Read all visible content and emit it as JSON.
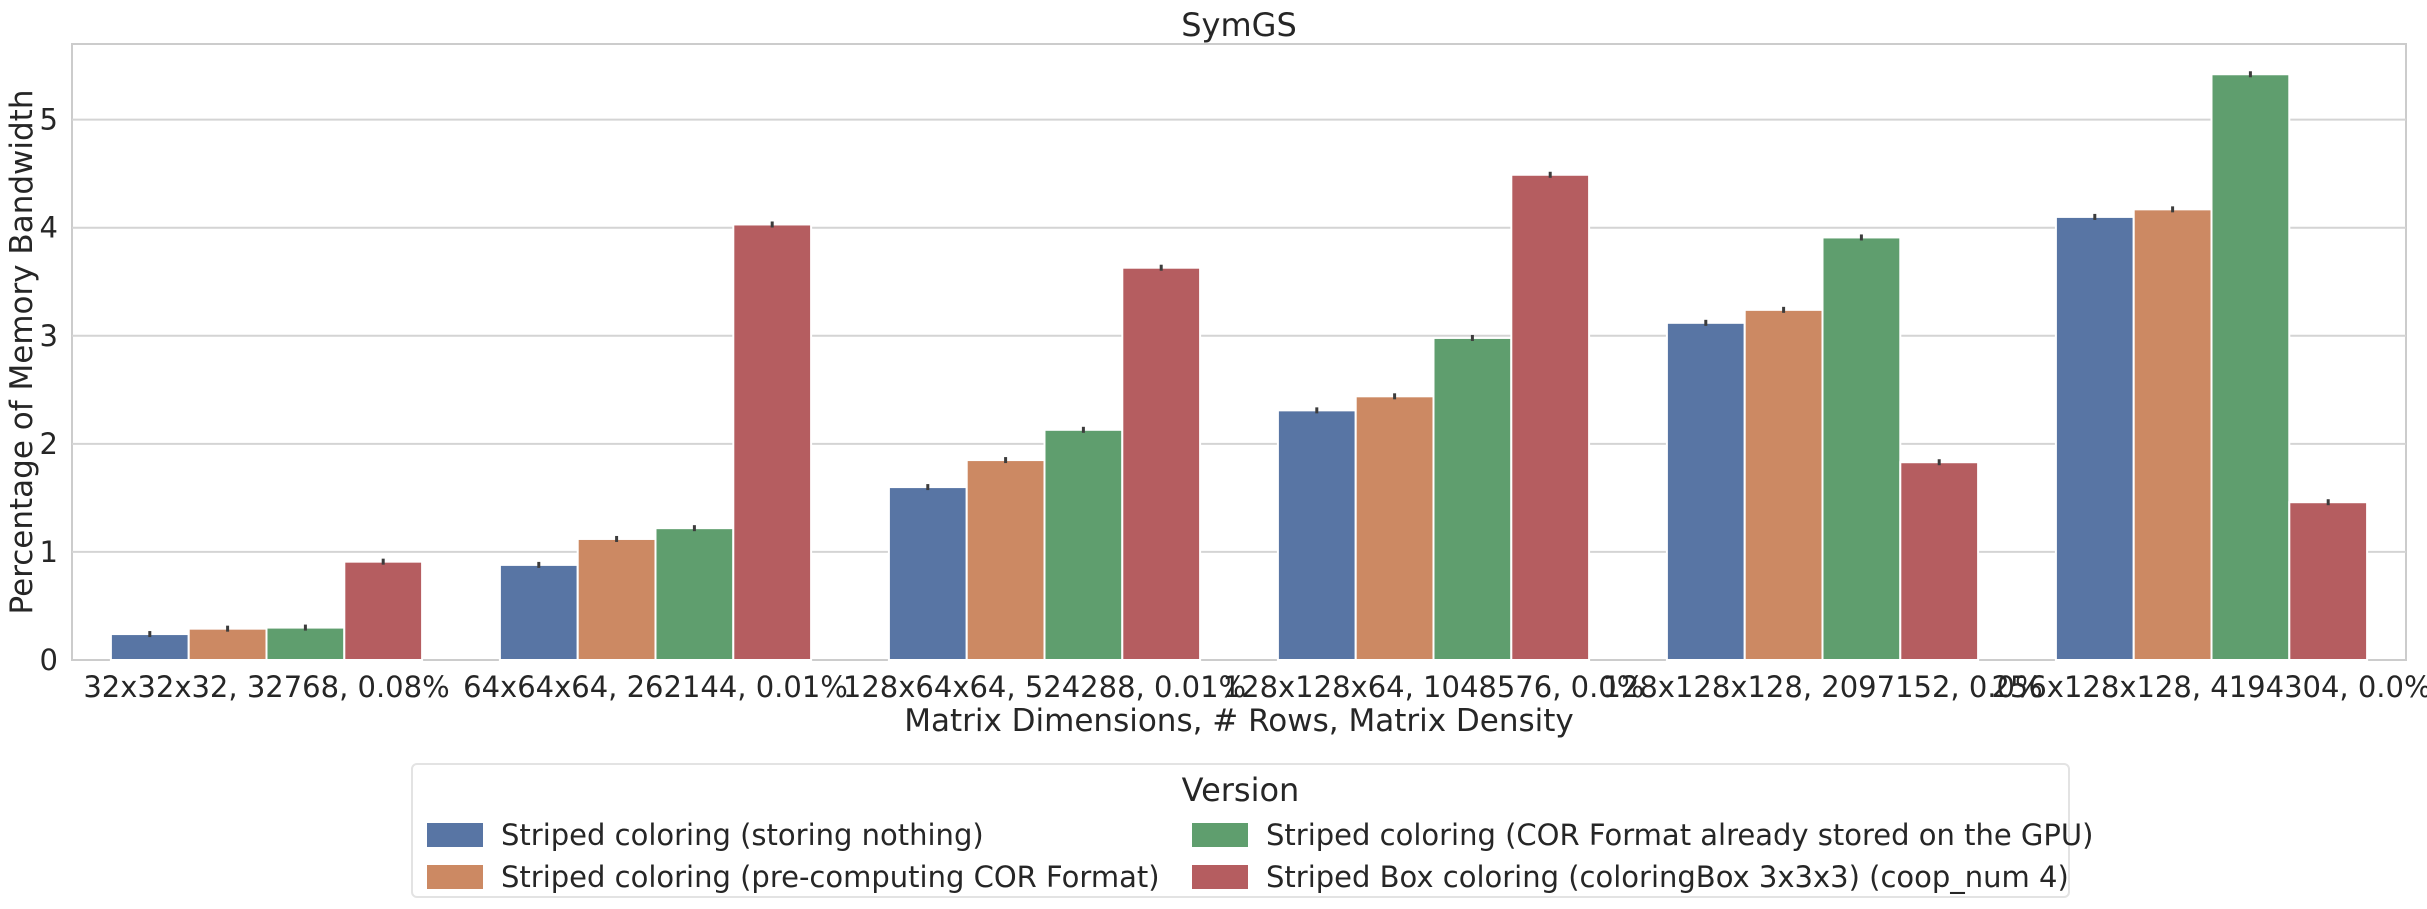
{
  "chart_data": {
    "type": "bar",
    "title": "SymGS",
    "xlabel": "Matrix Dimensions, # Rows, Matrix Density",
    "ylabel": "Percentage of Memory Bandwidth",
    "ylim": [
      0,
      5.7
    ],
    "yticks": [
      0,
      1,
      2,
      3,
      4,
      5
    ],
    "grid": true,
    "categories": [
      "32x32x32, 32768, 0.08%",
      "64x64x64, 262144, 0.01%",
      "128x64x64, 524288, 0.01%",
      "128x128x64, 1048576, 0.0%",
      "128x128x128, 2097152, 0.0%",
      "256x128x128, 4194304, 0.0%"
    ],
    "series": [
      {
        "name": "Striped coloring (storing nothing)",
        "color": "#5875a4",
        "values": [
          0.24,
          0.88,
          1.6,
          2.31,
          3.12,
          4.1
        ]
      },
      {
        "name": "Striped coloring (pre-computing COR Format)",
        "color": "#cc8963",
        "values": [
          0.29,
          1.12,
          1.85,
          2.44,
          3.24,
          4.17
        ]
      },
      {
        "name": "Striped coloring (COR Format already stored on the GPU)",
        "color": "#5f9e6e",
        "values": [
          0.3,
          1.22,
          2.13,
          2.98,
          3.91,
          5.42
        ]
      },
      {
        "name": "Striped Box coloring (coloringBox 3x3x3) (coop_num 4)",
        "color": "#b55d60",
        "values": [
          0.91,
          4.03,
          3.63,
          4.49,
          1.83,
          1.46
        ]
      }
    ],
    "legend": {
      "title": "Version",
      "placement": "bottom-center"
    }
  }
}
